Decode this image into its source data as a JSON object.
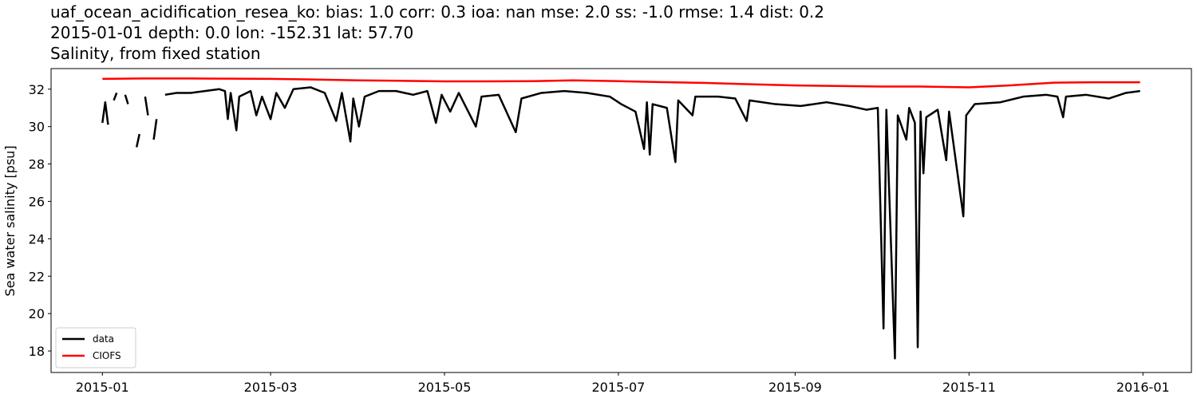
{
  "chart_data": {
    "type": "line",
    "title_lines": [
      "uaf_ocean_acidification_resea_ko: bias: 1.0  corr: 0.3  ioa: nan  mse: 2.0  ss: -1.0  rmse: 1.4  dist: 0.2",
      "2015-01-01 depth: 0.0 lon: -152.31 lat: 57.70",
      "Salinity, from fixed station"
    ],
    "ylabel": "Sea water salinity [psu]",
    "xlim": [
      "2014-12-14",
      "2016-01-18"
    ],
    "xticks": [
      {
        "value": "2015-01-01",
        "label": "2015-01"
      },
      {
        "value": "2015-03-01",
        "label": "2015-03"
      },
      {
        "value": "2015-05-01",
        "label": "2015-05"
      },
      {
        "value": "2015-07-01",
        "label": "2015-07"
      },
      {
        "value": "2015-09-01",
        "label": "2015-09"
      },
      {
        "value": "2015-11-01",
        "label": "2015-11"
      },
      {
        "value": "2016-01-01",
        "label": "2016-01"
      }
    ],
    "ylim": [
      16.85,
      33.1
    ],
    "yticks": [
      18,
      20,
      22,
      24,
      26,
      28,
      30,
      32
    ],
    "legend": "lower left",
    "series": [
      {
        "name": "data",
        "color": "#000000",
        "x": [
          "2015-01-01",
          "2015-01-02",
          "2015-01-03",
          "2015-01-04",
          "2015-01-05",
          "2015-01-06",
          "2015-01-07",
          "2015-01-09",
          "2015-01-10",
          "2015-01-11",
          "2015-01-13",
          "2015-01-14",
          "2015-01-15",
          "2015-01-16",
          "2015-01-17",
          "2015-01-18",
          "2015-01-19",
          "2015-01-20",
          "2015-01-21",
          "2015-01-23",
          "2015-01-27",
          "2015-02-01",
          "2015-02-06",
          "2015-02-11",
          "2015-02-13",
          "2015-02-14",
          "2015-02-15",
          "2015-02-17",
          "2015-02-18",
          "2015-02-22",
          "2015-02-24",
          "2015-02-26",
          "2015-03-01",
          "2015-03-03",
          "2015-03-06",
          "2015-03-09",
          "2015-03-15",
          "2015-03-20",
          "2015-03-24",
          "2015-03-26",
          "2015-03-29",
          "2015-03-30",
          "2015-04-01",
          "2015-04-03",
          "2015-04-08",
          "2015-04-14",
          "2015-04-20",
          "2015-04-25",
          "2015-04-28",
          "2015-04-30",
          "2015-05-03",
          "2015-05-06",
          "2015-05-12",
          "2015-05-14",
          "2015-05-20",
          "2015-05-26",
          "2015-05-28",
          "2015-06-04",
          "2015-06-12",
          "2015-06-20",
          "2015-06-28",
          "2015-07-02",
          "2015-07-07",
          "2015-07-10",
          "2015-07-11",
          "2015-07-12",
          "2015-07-13",
          "2015-07-18",
          "2015-07-21",
          "2015-07-22",
          "2015-07-27",
          "2015-07-28",
          "2015-08-05",
          "2015-08-11",
          "2015-08-15",
          "2015-08-16",
          "2015-08-25",
          "2015-09-03",
          "2015-09-12",
          "2015-09-20",
          "2015-09-26",
          "2015-09-30",
          "2015-10-02",
          "2015-10-03",
          "2015-10-06",
          "2015-10-07",
          "2015-10-10",
          "2015-10-11",
          "2015-10-13",
          "2015-10-14",
          "2015-10-15",
          "2015-10-16",
          "2015-10-17",
          "2015-10-21",
          "2015-10-24",
          "2015-10-25",
          "2015-10-30",
          "2015-10-31",
          "2015-11-03",
          "2015-11-12",
          "2015-11-20",
          "2015-11-28",
          "2015-12-02",
          "2015-12-04",
          "2015-12-05",
          "2015-12-12",
          "2015-12-20",
          "2015-12-26",
          "2015-12-31"
        ],
        "values": [
          30.2,
          31.3,
          30.1,
          null,
          31.4,
          31.8,
          null,
          31.7,
          31.2,
          null,
          28.9,
          29.6,
          null,
          31.6,
          30.6,
          null,
          29.3,
          30.4,
          null,
          31.7,
          31.8,
          31.8,
          31.9,
          32.0,
          31.9,
          30.4,
          31.8,
          29.8,
          31.6,
          31.9,
          30.6,
          31.6,
          30.4,
          31.8,
          31.0,
          32.0,
          32.1,
          31.8,
          30.3,
          31.8,
          29.2,
          31.5,
          30.0,
          31.6,
          31.9,
          31.9,
          31.7,
          31.9,
          30.2,
          31.7,
          30.8,
          31.8,
          30.0,
          31.6,
          31.7,
          29.7,
          31.5,
          31.8,
          31.9,
          31.8,
          31.6,
          31.2,
          30.8,
          28.8,
          31.3,
          28.5,
          31.2,
          31.0,
          28.1,
          31.4,
          30.6,
          31.6,
          31.6,
          31.5,
          30.3,
          31.4,
          31.2,
          31.1,
          31.3,
          31.1,
          30.9,
          31.0,
          19.2,
          30.9,
          17.6,
          30.6,
          29.3,
          31.0,
          30.2,
          18.2,
          30.8,
          27.5,
          30.5,
          30.9,
          28.2,
          30.8,
          25.2,
          30.6,
          31.2,
          31.3,
          31.6,
          31.7,
          31.6,
          30.5,
          31.6,
          31.7,
          31.5,
          31.8,
          31.9
        ]
      },
      {
        "name": "CIOFS",
        "color": "#ff0000",
        "x": [
          "2015-01-01",
          "2015-01-15",
          "2015-02-01",
          "2015-02-15",
          "2015-03-01",
          "2015-03-15",
          "2015-04-01",
          "2015-04-15",
          "2015-05-01",
          "2015-05-15",
          "2015-06-01",
          "2015-06-15",
          "2015-07-01",
          "2015-07-15",
          "2015-08-01",
          "2015-08-15",
          "2015-09-01",
          "2015-09-15",
          "2015-10-01",
          "2015-10-15",
          "2015-11-01",
          "2015-11-15",
          "2015-12-01",
          "2015-12-15",
          "2015-12-31"
        ],
        "values": [
          32.55,
          32.57,
          32.57,
          32.56,
          32.55,
          32.52,
          32.47,
          32.45,
          32.42,
          32.42,
          32.43,
          32.47,
          32.43,
          32.38,
          32.33,
          32.27,
          32.2,
          32.17,
          32.14,
          32.14,
          32.1,
          32.2,
          32.35,
          32.37,
          32.37
        ]
      }
    ]
  }
}
